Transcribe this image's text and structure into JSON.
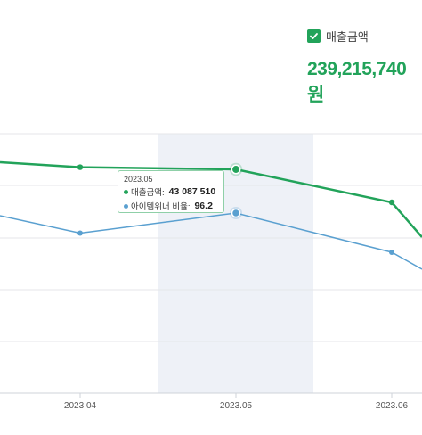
{
  "legend": {
    "label": "매출금액",
    "color": "#22a35a"
  },
  "summary": {
    "total": "239,215,740원"
  },
  "tooltip": {
    "title": "2023.05",
    "rows": [
      {
        "label": "매출금액:",
        "value": "43 087 510",
        "color": "#22a35a"
      },
      {
        "label": "아이템위너 비율:",
        "value": "96.2",
        "color": "#5aa0d0"
      }
    ]
  },
  "chart_data": {
    "type": "line",
    "categories": [
      "2023.04",
      "2023.05",
      "2023.06"
    ],
    "highlight_category": "2023.05",
    "grid": true,
    "series": [
      {
        "name": "매출금액",
        "color": "#22a35a",
        "values": [
          43500000,
          43087510,
          36800000
        ]
      },
      {
        "name": "아이템위너 비율",
        "color": "#5aa0d0",
        "values": [
          91.5,
          96.2,
          87.0
        ]
      }
    ]
  }
}
